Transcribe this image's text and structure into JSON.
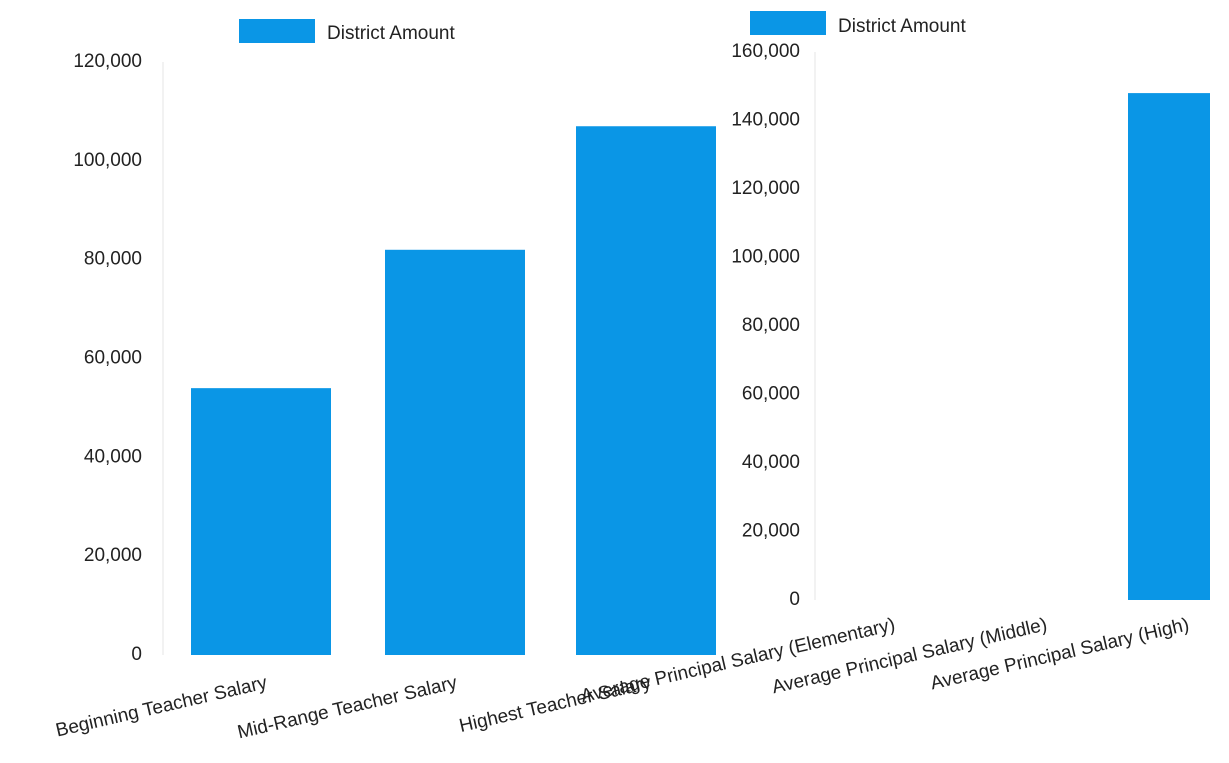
{
  "chart_data": [
    {
      "type": "bar",
      "legend": "District Amount",
      "legend_position": "top",
      "color": "#0a96e6",
      "ylim": [
        0,
        120000
      ],
      "yticks": [
        "0",
        "20,000",
        "40,000",
        "60,000",
        "80,000",
        "100,000",
        "120,000"
      ],
      "categories": [
        "Beginning Teacher Salary",
        "Mid-Range Teacher Salary",
        "Highest Teacher Salary"
      ],
      "series": [
        {
          "name": "District Amount",
          "values": [
            54000,
            82000,
            107000
          ]
        }
      ]
    },
    {
      "type": "bar",
      "legend": "District Amount",
      "legend_position": "top",
      "color": "#0a96e6",
      "ylim": [
        0,
        160000
      ],
      "yticks": [
        "0",
        "20,000",
        "40,000",
        "60,000",
        "80,000",
        "100,000",
        "120,000",
        "140,000",
        "160,000"
      ],
      "categories": [
        "Average Principal Salary (Elementary)",
        "Average Principal Salary (Middle)",
        "Average Principal Salary (High)"
      ],
      "series": [
        {
          "name": "District Amount",
          "values": [
            null,
            null,
            148000
          ]
        }
      ]
    }
  ]
}
